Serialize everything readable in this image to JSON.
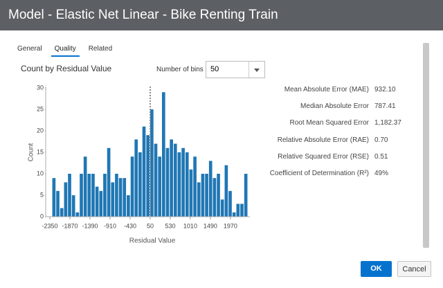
{
  "header": {
    "title": "Model - Elastic Net Linear - Bike Renting Train"
  },
  "tabs": [
    "General",
    "Quality",
    "Related"
  ],
  "selected_tab": 1,
  "bins_label": "Number of bins",
  "bins_input": 50,
  "chart_data": {
    "type": "histogram",
    "title": "Count by Residual Value",
    "x_label": "Residual Value",
    "y_label": "Count",
    "bins": [
      -2300,
      -2206.3,
      -2112.6,
      -2018.9,
      -1925.2,
      -1831.5,
      -1737.8,
      -1644.1,
      -1550.4,
      -1456.7,
      -1363,
      -1269.3,
      -1175.6,
      -1081.9,
      -988.2,
      -894.5,
      -800.8,
      -707.1,
      -613.4,
      -519.7,
      -426,
      -332.3,
      -238.6,
      -144.9,
      -51.2,
      42.5,
      136.2,
      229.9,
      323.6,
      417.3,
      511,
      604.7,
      698.4,
      792.1,
      885.8,
      979.5,
      1073.2,
      1166.9,
      1260.6,
      1354.3,
      1448,
      1541.7,
      1635.4,
      1729.1,
      1822.8,
      1916.5,
      2010.2,
      2103.9,
      2197.6,
      2291.3,
      2385
    ],
    "values": [
      9,
      6,
      2,
      8,
      10,
      5,
      1,
      10,
      14,
      10,
      10,
      7,
      6,
      10,
      16,
      8,
      10,
      9,
      9,
      5,
      14,
      18,
      15,
      21,
      19,
      25,
      17,
      14,
      29,
      16,
      18,
      17,
      15,
      16,
      15,
      11,
      14,
      8,
      10,
      10,
      13,
      9,
      10,
      4,
      12,
      6,
      1,
      3,
      3,
      10
    ],
    "color": "#2077b4",
    "reference_x": 50,
    "xlim": [
      -2450,
      2435
    ],
    "xticks": [
      -2350,
      -1870,
      -1390,
      -910,
      -430,
      50,
      530,
      1010,
      1490,
      1970
    ],
    "ylim": [
      0,
      30
    ],
    "yticks": [
      0,
      5,
      10,
      15,
      20,
      25,
      30
    ]
  },
  "metrics": [
    {
      "label": "Mean Absolute Error (MAE)",
      "value": "932.10"
    },
    {
      "label": "Median Absolute Error",
      "value": "787.41"
    },
    {
      "label": "Root Mean Squared Error",
      "value": "1,182.37"
    },
    {
      "label": "Relative Absolute Error (RAE)",
      "value": "0.70"
    },
    {
      "label": "Relative Squared Error (RSE)",
      "value": "0.51"
    },
    {
      "label": "Coefficient of Determination (R²)",
      "value": "49%"
    }
  ],
  "buttons": {
    "ok": "OK",
    "cancel": "Cancel"
  }
}
